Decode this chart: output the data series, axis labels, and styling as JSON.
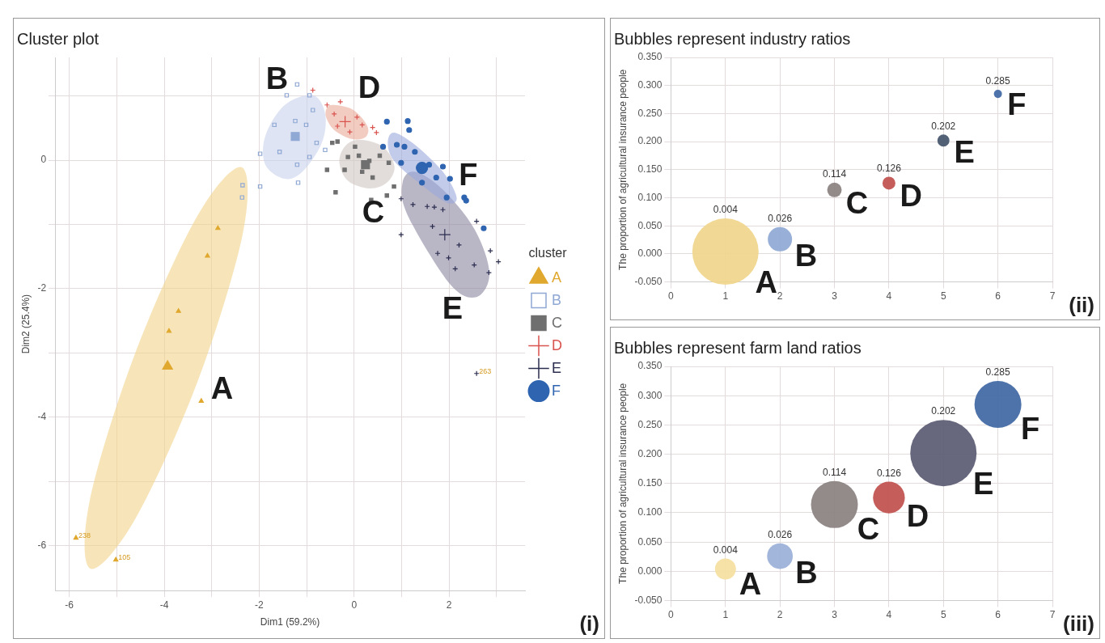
{
  "chart_data": [
    {
      "type": "scatter",
      "title": "Cluster plot",
      "xlabel": "Dim1 (59.2%)",
      "ylabel": "Dim2 (25.4%)",
      "legend_title": "cluster",
      "legend": "right",
      "grid": true,
      "xlim": [
        -6.3,
        3.6
      ],
      "ylim": [
        -6.7,
        1.6
      ],
      "xticks": [
        -6,
        {
          "value": -5,
          "label": null
        },
        -4,
        {
          "value": -3,
          "label": null
        },
        -2,
        {
          "value": -1,
          "label": null
        },
        0,
        {
          "value": 1,
          "label": null
        },
        2,
        {
          "value": 3,
          "label": null
        }
      ],
      "yticks": [
        -6,
        {
          "value": -5,
          "label": null
        },
        -4,
        {
          "value": -3,
          "label": null
        },
        -2,
        {
          "value": -1,
          "label": null
        },
        0,
        {
          "value": 1,
          "label": null
        }
      ],
      "series": [
        {
          "type": "area",
          "name": "A",
          "color": "#f2d48a",
          "x": [
            -3.29,
            -4.6,
            -5.55,
            -5.57,
            -4.63,
            -3.32,
            -2.37,
            -2.35
          ],
          "values": [
            -3.43,
            -5.57,
            -6.36,
            -5.3,
            -3.04,
            -0.89,
            -0.11,
            -1.16
          ]
        },
        {
          "type": "area",
          "name": "B",
          "color": "#c8d2ec",
          "x": [
            -1.46,
            -0.87,
            -0.61,
            -0.68,
            -1.09,
            -1.46,
            -1.87,
            -1.87
          ],
          "values": [
            0.86,
            1.01,
            0.72,
            0.27,
            -0.18,
            -0.29,
            -0.07,
            0.38
          ]
        },
        {
          "type": "area",
          "name": "C",
          "color": "#cfc6c2",
          "x": [
            0.32,
            -0.13,
            -0.31,
            -0.2,
            0.1,
            0.61,
            0.85,
            0.69
          ],
          "values": [
            -0.44,
            -0.32,
            -0.04,
            0.21,
            0.32,
            0.21,
            -0.1,
            -0.35
          ]
        },
        {
          "type": "area",
          "name": "D",
          "color": "#eaa898",
          "x": [
            -0.01,
            0.28,
            0.24,
            -0.05,
            -0.42,
            -0.59,
            -0.57,
            -0.42
          ],
          "values": [
            0.78,
            0.53,
            0.36,
            0.33,
            0.47,
            0.67,
            0.82,
            0.86
          ]
        },
        {
          "type": "area",
          "name": "E",
          "color": "#8a86a0",
          "x": [
            2.02,
            1.13,
            1.02,
            1.28,
            1.87,
            2.54,
            2.85,
            2.58
          ],
          "values": [
            -1.93,
            -0.86,
            -0.35,
            -0.18,
            -0.46,
            -1.08,
            -1.76,
            -2.13
          ]
        },
        {
          "type": "area",
          "name": "F",
          "color": "#9aa8dc",
          "x": [
            1.87,
            2.16,
            1.95,
            1.36,
            0.84,
            0.71,
            0.84,
            1.28
          ],
          "values": [
            -0.18,
            -0.58,
            -0.66,
            -0.35,
            -0.01,
            0.27,
            0.43,
            0.24
          ]
        },
        {
          "name": "A",
          "color": "#e0a82e",
          "marker": "triangle",
          "x": [
            -2.87,
            -3.09,
            -3.7,
            -3.9,
            -3.22,
            -5.86,
            -5.02
          ],
          "values": [
            -1.06,
            -1.49,
            -2.35,
            -2.66,
            -3.75,
            -5.88,
            -6.22
          ]
        },
        {
          "name": "B",
          "color": "#8fa8d4",
          "marker": "square",
          "x": [
            -1.2,
            -0.94,
            -1.42,
            -0.87,
            -1.68,
            -1.01,
            -1.24,
            -0.79,
            -1.57,
            -0.94,
            -1.98,
            -1.2,
            -1.98,
            -2.35,
            -2.36,
            -1.18,
            -0.61
          ],
          "values": [
            1.18,
            1.01,
            1.01,
            0.78,
            0.55,
            0.55,
            0.61,
            0.27,
            0.13,
            0.05,
            0.1,
            -0.07,
            -0.41,
            -0.39,
            -0.58,
            -0.35,
            0.16
          ]
        },
        {
          "name": "C",
          "color": "#6f6f6f",
          "marker": "square",
          "x": [
            -0.46,
            -0.35,
            0.02,
            0.1,
            0.32,
            0.54,
            0.73,
            0.17,
            0.39,
            -0.2,
            -0.57,
            -0.39,
            0.36,
            0.69,
            0.84,
            -0.13
          ],
          "values": [
            0.27,
            0.29,
            0.21,
            0.07,
            -0.01,
            0.07,
            -0.04,
            -0.18,
            -0.27,
            -0.15,
            -0.15,
            -0.5,
            -0.62,
            -0.55,
            -0.41,
            0.05
          ]
        },
        {
          "name": "D",
          "color": "#d9534f",
          "marker": "cross",
          "x": [
            -0.87,
            -0.29,
            -0.42,
            -0.2,
            0.06,
            -0.09,
            0.17,
            0.39,
            0.47,
            -0.35,
            -0.57
          ],
          "values": [
            1.09,
            0.91,
            0.72,
            null,
            0.67,
            0.44,
            0.55,
            0.51,
            0.43,
            0.53,
            0.86
          ]
        },
        {
          "name": "E",
          "color": "#2b2d4f",
          "marker": "cross",
          "x": [
            0.99,
            1.24,
            1.54,
            1.69,
            1.87,
            0.99,
            1.65,
            2.58,
            2.21,
            1.76,
            1.99,
            2.13,
            2.53,
            2.87,
            3.04,
            2.84,
            2.58
          ],
          "values": [
            -0.6,
            -0.69,
            -0.72,
            -0.73,
            -0.77,
            -1.16,
            -1.03,
            -0.95,
            -1.32,
            -1.45,
            -1.52,
            -1.69,
            -1.63,
            -1.41,
            -1.58,
            -1.75,
            -3.32
          ]
        },
        {
          "name": "F",
          "color": "#2e64b0",
          "marker": "circle",
          "x": [
            0.69,
            1.13,
            1.16,
            0.9,
            1.06,
            1.28,
            0.61,
            0.99,
            1.58,
            1.87,
            1.73,
            1.43,
            2.02,
            2.32,
            2.36,
            2.73,
            1.95
          ],
          "values": [
            0.6,
            0.61,
            0.47,
            0.24,
            0.21,
            0.13,
            0.21,
            -0.04,
            -0.07,
            -0.1,
            -0.27,
            -0.35,
            -0.29,
            -0.58,
            -0.63,
            -1.06,
            -0.58
          ]
        },
        {
          "color": "#e0a82e",
          "marker": "triangle",
          "x": [
            -3.93
          ],
          "values": [
            -3.21
          ]
        },
        {
          "color": "#8fa8d4",
          "marker": "square",
          "x": [
            -1.24
          ],
          "values": [
            0.37
          ]
        },
        {
          "color": "#6f6f6f",
          "marker": "square",
          "x": [
            0.24
          ],
          "values": [
            -0.07
          ]
        },
        {
          "color": "#d9534f",
          "marker": "cross",
          "x": [
            -0.19
          ],
          "values": [
            0.6
          ]
        },
        {
          "color": "#2b2d4f",
          "marker": "cross",
          "x": [
            1.91
          ],
          "values": [
            -1.16
          ]
        },
        {
          "color": "#2e64b0",
          "marker": "circle",
          "x": [
            1.43
          ],
          "values": [
            -0.12
          ]
        }
      ],
      "annotations": [
        {
          "text": "238",
          "x": -5.86,
          "y": -5.88
        },
        {
          "text": "105",
          "x": -5.02,
          "y": -6.22
        },
        {
          "text": "263",
          "x": 2.58,
          "y": -3.32
        },
        "(i)"
      ]
    },
    {
      "type": "bubble",
      "title": "Bubbles represent industry ratios",
      "ylabel": "The proportion of agricultural insurance people",
      "grid": true,
      "xlim": [
        0,
        7
      ],
      "xticks": [
        0,
        1,
        2,
        3,
        4,
        5,
        6,
        7
      ],
      "ylim": [
        -0.05,
        0.35
      ],
      "yticks": [
        {
          "value": -0.05,
          "label": "-0.050"
        },
        {
          "value": 0,
          "label": "0.000"
        },
        {
          "value": 0.05,
          "label": "0.050"
        },
        {
          "value": 0.1,
          "label": "0.100"
        },
        {
          "value": 0.15,
          "label": "0.150"
        },
        {
          "value": 0.2,
          "label": "0.200"
        },
        {
          "value": 0.25,
          "label": "0.250"
        },
        {
          "value": 0.3,
          "label": "0.300"
        },
        {
          "value": 0.35,
          "label": "0.350"
        }
      ],
      "series": [
        {
          "name": "A",
          "color": "#f0d68c",
          "x": [
            1
          ],
          "values": [
            0.004
          ],
          "sizes": [
            1
          ],
          "value_labels": [
            "0.004"
          ]
        },
        {
          "name": "B",
          "color": "#8fa8d4",
          "x": [
            2
          ],
          "values": [
            0.026
          ],
          "sizes": [
            0.134
          ],
          "value_labels": [
            "0.026"
          ]
        },
        {
          "name": "C",
          "color": "#8a8080",
          "x": [
            3
          ],
          "values": [
            0.114
          ],
          "sizes": [
            0.048
          ],
          "value_labels": [
            "0.114"
          ]
        },
        {
          "name": "D",
          "color": "#c0504d",
          "x": [
            4
          ],
          "values": [
            0.126
          ],
          "sizes": [
            0.038
          ],
          "value_labels": [
            "0.126"
          ]
        },
        {
          "name": "E",
          "color": "#44546a",
          "x": [
            5
          ],
          "values": [
            0.202
          ],
          "sizes": [
            0.033
          ],
          "value_labels": [
            "0.202"
          ]
        },
        {
          "name": "F",
          "color": "#3f67a3",
          "x": [
            6
          ],
          "values": [
            0.285
          ],
          "sizes": [
            0.015
          ],
          "value_labels": [
            "0.285"
          ]
        }
      ],
      "annotations": [
        "(ii)"
      ]
    },
    {
      "type": "bubble",
      "title": "Bubbles represent farm land ratios",
      "ylabel": "The proportion of agricultural insurance people",
      "grid": true,
      "xlim": [
        0,
        7
      ],
      "xticks": [
        0,
        1,
        2,
        3,
        4,
        5,
        6,
        7
      ],
      "ylim": [
        -0.05,
        0.35
      ],
      "yticks": [
        {
          "value": -0.05,
          "label": "-0.050"
        },
        {
          "value": 0,
          "label": "0.000"
        },
        {
          "value": 0.05,
          "label": "0.050"
        },
        {
          "value": 0.1,
          "label": "0.100"
        },
        {
          "value": 0.15,
          "label": "0.150"
        },
        {
          "value": 0.2,
          "label": "0.200"
        },
        {
          "value": 0.25,
          "label": "0.250"
        },
        {
          "value": 0.3,
          "label": "0.300"
        },
        {
          "value": 0.35,
          "label": "0.350"
        }
      ],
      "series": [
        {
          "name": "A",
          "color": "#f5dfa0",
          "x": [
            1
          ],
          "values": [
            0.004
          ],
          "sizes": [
            0.1
          ],
          "value_labels": [
            "0.004"
          ]
        },
        {
          "name": "B",
          "color": "#9ab0d8",
          "x": [
            2
          ],
          "values": [
            0.026
          ],
          "sizes": [
            0.15
          ],
          "value_labels": [
            "0.026"
          ]
        },
        {
          "name": "C",
          "color": "#8a8080",
          "x": [
            3
          ],
          "values": [
            0.114
          ],
          "sizes": [
            0.5
          ],
          "value_labels": [
            "0.114"
          ]
        },
        {
          "name": "D",
          "color": "#c0504d",
          "x": [
            4
          ],
          "values": [
            0.126
          ],
          "sizes": [
            0.23
          ],
          "value_labels": [
            "0.126"
          ]
        },
        {
          "name": "E",
          "color": "#5a5a72",
          "x": [
            5
          ],
          "values": [
            0.202
          ],
          "sizes": [
            1
          ],
          "value_labels": [
            "0.202"
          ]
        },
        {
          "name": "F",
          "color": "#3f67a3",
          "x": [
            6
          ],
          "values": [
            0.285
          ],
          "sizes": [
            0.5
          ],
          "value_labels": [
            "0.285"
          ]
        }
      ],
      "annotations": [
        "(iii)"
      ]
    }
  ]
}
